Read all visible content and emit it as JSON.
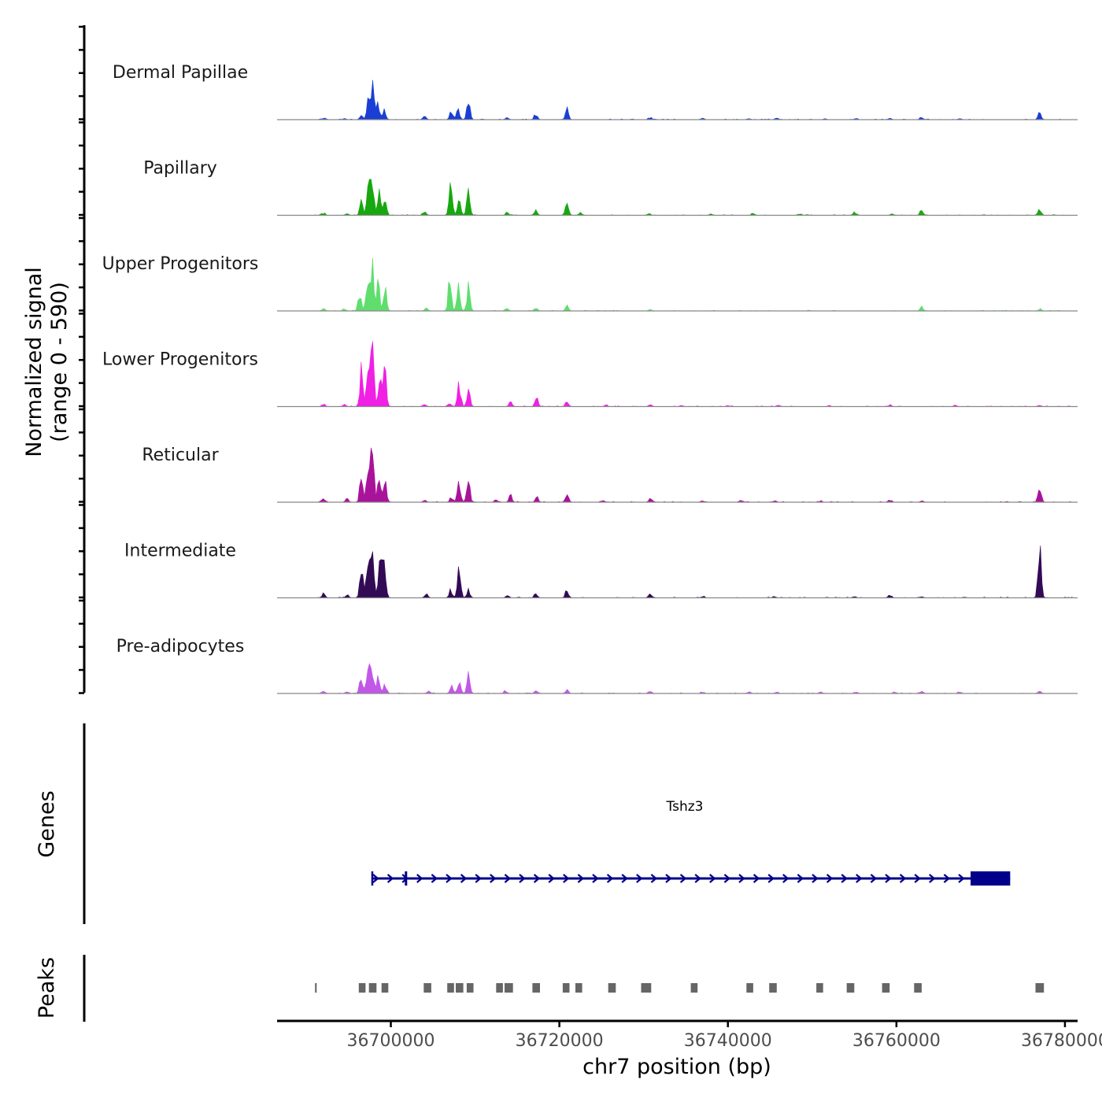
{
  "chart_data": {
    "type": "area",
    "title": "",
    "ylabel_line1": "Normalized signal",
    "ylabel_line2": "(range 0 - 590)",
    "yrange": [
      0,
      590
    ],
    "xlabel": "chr7 position (bp)",
    "xlim": [
      36686500,
      36781500
    ],
    "xticks": [
      36700000,
      36720000,
      36740000,
      36760000,
      36780000
    ],
    "xtick_labels": [
      "36700000",
      "36720000",
      "36740000",
      "36760000",
      "36780000"
    ],
    "region": [
      36691000,
      36781000
    ],
    "tracks": [
      {
        "name": "Dermal Papillae",
        "color": "#1a3fd4",
        "peaks": [
          [
            36692000,
            8
          ],
          [
            36694500,
            6
          ],
          [
            36696500,
            30
          ],
          [
            36697400,
            150
          ],
          [
            36697900,
            190
          ],
          [
            36698500,
            90
          ],
          [
            36699200,
            60
          ],
          [
            36704000,
            22
          ],
          [
            36707200,
            48
          ],
          [
            36708000,
            60
          ],
          [
            36709200,
            110
          ],
          [
            36713800,
            12
          ],
          [
            36717200,
            35
          ],
          [
            36720900,
            60
          ],
          [
            36730800,
            14
          ],
          [
            36737000,
            8
          ],
          [
            36742500,
            6
          ],
          [
            36745800,
            10
          ],
          [
            36751500,
            6
          ],
          [
            36755200,
            8
          ],
          [
            36759200,
            8
          ],
          [
            36763000,
            12
          ],
          [
            36767500,
            6
          ],
          [
            36777000,
            40
          ]
        ]
      },
      {
        "name": "Papillary",
        "color": "#17a80f",
        "peaks": [
          [
            36692000,
            12
          ],
          [
            36694800,
            10
          ],
          [
            36696500,
            80
          ],
          [
            36697300,
            180
          ],
          [
            36697800,
            210
          ],
          [
            36698600,
            120
          ],
          [
            36699300,
            80
          ],
          [
            36704000,
            20
          ],
          [
            36707100,
            170
          ],
          [
            36708100,
            110
          ],
          [
            36709200,
            130
          ],
          [
            36713800,
            14
          ],
          [
            36717200,
            28
          ],
          [
            36720900,
            90
          ],
          [
            36722500,
            18
          ],
          [
            36730600,
            12
          ],
          [
            36738000,
            8
          ],
          [
            36743000,
            12
          ],
          [
            36748500,
            8
          ],
          [
            36755000,
            18
          ],
          [
            36759500,
            8
          ],
          [
            36763000,
            30
          ],
          [
            36777000,
            38
          ]
        ]
      },
      {
        "name": "Upper Progenitors",
        "color": "#5fde6d",
        "peaks": [
          [
            36692000,
            12
          ],
          [
            36694500,
            10
          ],
          [
            36696300,
            90
          ],
          [
            36697200,
            190
          ],
          [
            36697800,
            330
          ],
          [
            36698500,
            160
          ],
          [
            36699300,
            130
          ],
          [
            36704200,
            18
          ],
          [
            36707000,
            190
          ],
          [
            36708000,
            140
          ],
          [
            36709200,
            140
          ],
          [
            36713800,
            12
          ],
          [
            36717200,
            22
          ],
          [
            36720900,
            38
          ],
          [
            36730800,
            10
          ],
          [
            36763000,
            20
          ],
          [
            36777000,
            10
          ]
        ]
      },
      {
        "name": "Lower Progenitors",
        "color": "#f020e4",
        "peaks": [
          [
            36692000,
            12
          ],
          [
            36694500,
            12
          ],
          [
            36696500,
            220
          ],
          [
            36697300,
            280
          ],
          [
            36697800,
            350
          ],
          [
            36698700,
            150
          ],
          [
            36699300,
            200
          ],
          [
            36704000,
            16
          ],
          [
            36707000,
            22
          ],
          [
            36708100,
            130
          ],
          [
            36709200,
            110
          ],
          [
            36714200,
            30
          ],
          [
            36717300,
            45
          ],
          [
            36720900,
            28
          ],
          [
            36725500,
            8
          ],
          [
            36730800,
            12
          ],
          [
            36734500,
            8
          ],
          [
            36740000,
            6
          ],
          [
            36746000,
            8
          ],
          [
            36752000,
            6
          ],
          [
            36759200,
            8
          ],
          [
            36767000,
            6
          ],
          [
            36777000,
            8
          ]
        ]
      },
      {
        "name": "Reticular",
        "color": "#a8139a",
        "peaks": [
          [
            36692000,
            25
          ],
          [
            36694800,
            18
          ],
          [
            36696500,
            150
          ],
          [
            36697300,
            200
          ],
          [
            36697800,
            320
          ],
          [
            36698600,
            160
          ],
          [
            36699300,
            170
          ],
          [
            36704000,
            12
          ],
          [
            36707200,
            30
          ],
          [
            36708100,
            120
          ],
          [
            36709200,
            120
          ],
          [
            36712500,
            16
          ],
          [
            36714200,
            40
          ],
          [
            36717300,
            30
          ],
          [
            36720900,
            45
          ],
          [
            36725200,
            10
          ],
          [
            36730800,
            18
          ],
          [
            36737000,
            8
          ],
          [
            36741500,
            10
          ],
          [
            36745500,
            8
          ],
          [
            36751000,
            6
          ],
          [
            36759200,
            14
          ],
          [
            36763000,
            8
          ],
          [
            36777000,
            80
          ]
        ]
      },
      {
        "name": "Intermediate",
        "color": "#330a56",
        "peaks": [
          [
            36692000,
            22
          ],
          [
            36694800,
            16
          ],
          [
            36696500,
            200
          ],
          [
            36697300,
            240
          ],
          [
            36697800,
            260
          ],
          [
            36698700,
            220
          ],
          [
            36699200,
            280
          ],
          [
            36704200,
            30
          ],
          [
            36707100,
            50
          ],
          [
            36708100,
            200
          ],
          [
            36709200,
            50
          ],
          [
            36713800,
            12
          ],
          [
            36717200,
            22
          ],
          [
            36720900,
            45
          ],
          [
            36730800,
            22
          ],
          [
            36737000,
            8
          ],
          [
            36745500,
            8
          ],
          [
            36755000,
            6
          ],
          [
            36759200,
            18
          ],
          [
            36763000,
            8
          ],
          [
            36777000,
            300
          ]
        ]
      },
      {
        "name": "Pre-adipocytes",
        "color": "#c257e8",
        "peaks": [
          [
            36692000,
            14
          ],
          [
            36694800,
            12
          ],
          [
            36696500,
            100
          ],
          [
            36697300,
            190
          ],
          [
            36697800,
            150
          ],
          [
            36698500,
            100
          ],
          [
            36699300,
            60
          ],
          [
            36704500,
            16
          ],
          [
            36707200,
            45
          ],
          [
            36708100,
            70
          ],
          [
            36709200,
            100
          ],
          [
            36713600,
            18
          ],
          [
            36717300,
            15
          ],
          [
            36720900,
            16
          ],
          [
            36730800,
            14
          ],
          [
            36737000,
            8
          ],
          [
            36742500,
            8
          ],
          [
            36745800,
            10
          ],
          [
            36751000,
            8
          ],
          [
            36755200,
            10
          ],
          [
            36759800,
            10
          ],
          [
            36763000,
            12
          ],
          [
            36767500,
            10
          ],
          [
            36777000,
            18
          ]
        ]
      }
    ],
    "genes_label": "Genes",
    "gene": {
      "name": "Tshz3",
      "start": 36697800,
      "end": 36773500,
      "strand": "+",
      "exon_start": 36768800,
      "marker": 36701800
    },
    "peaks_label": "Peaks",
    "peak_regions": [
      [
        36691000,
        36691200
      ],
      [
        36696200,
        36697000
      ],
      [
        36697400,
        36698300
      ],
      [
        36698900,
        36699700
      ],
      [
        36703900,
        36704800
      ],
      [
        36706700,
        36707500
      ],
      [
        36707700,
        36708600
      ],
      [
        36709000,
        36709800
      ],
      [
        36712500,
        36713300
      ],
      [
        36713500,
        36714500
      ],
      [
        36716800,
        36717700
      ],
      [
        36720400,
        36721200
      ],
      [
        36721900,
        36722700
      ],
      [
        36725800,
        36726700
      ],
      [
        36729700,
        36730900
      ],
      [
        36735600,
        36736400
      ],
      [
        36742200,
        36743000
      ],
      [
        36744900,
        36745800
      ],
      [
        36750500,
        36751300
      ],
      [
        36754100,
        36755000
      ],
      [
        36758300,
        36759200
      ],
      [
        36762100,
        36763000
      ],
      [
        36776500,
        36777500
      ]
    ]
  }
}
